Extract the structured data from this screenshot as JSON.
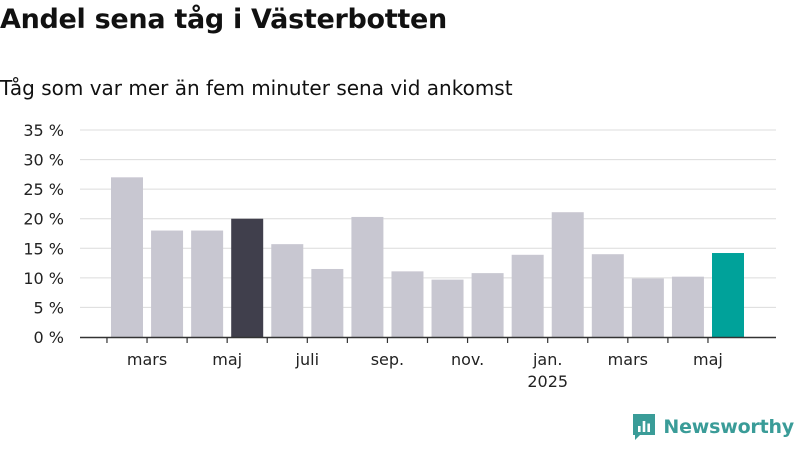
{
  "title": "Andel sena tåg i Västerbotten",
  "subtitle": "Tåg som var mer än fem minuter sena vid ankomst",
  "brand": {
    "name": "Newsworthy",
    "color": "#3a9c98",
    "icon": "newsworthy-logo-icon"
  },
  "colors": {
    "default": "#c8c7d1",
    "highlight_prev": "#403f4c",
    "highlight_last": "#00a29a",
    "grid": "#dcdcdc",
    "axis": "#333333"
  },
  "chart_data": {
    "type": "bar",
    "title": "Andel sena tåg i Västerbotten",
    "subtitle": "Tåg som var mer än fem minuter sena vid ankomst",
    "xlabel": "",
    "ylabel": "",
    "ylim": [
      0,
      35
    ],
    "y_ticks": [
      {
        "value": 0,
        "label": "0 %"
      },
      {
        "value": 5,
        "label": "5 %"
      },
      {
        "value": 10,
        "label": "10 %"
      },
      {
        "value": 15,
        "label": "15 %"
      },
      {
        "value": 20,
        "label": "20 %"
      },
      {
        "value": 25,
        "label": "25 %"
      },
      {
        "value": 30,
        "label": "30 %"
      },
      {
        "value": 35,
        "label": "35 %"
      }
    ],
    "grid": true,
    "categories": [
      "2024-02",
      "2024-03",
      "2024-04",
      "2024-05",
      "2024-06",
      "2024-07",
      "2024-08",
      "2024-09",
      "2024-10",
      "2024-11",
      "2024-12",
      "2025-01",
      "2025-02",
      "2025-03",
      "2025-04",
      "2025-05"
    ],
    "values": [
      27.0,
      18.0,
      18.0,
      20.0,
      15.7,
      11.5,
      20.3,
      11.1,
      9.7,
      10.8,
      13.9,
      21.1,
      14.0,
      9.9,
      10.2,
      14.2
    ],
    "highlight": {
      "2024-05": "highlight_prev",
      "2025-05": "highlight_last"
    },
    "x_labels": [
      {
        "category": "2024-03",
        "label": "mars",
        "sub": ""
      },
      {
        "category": "2024-05",
        "label": "maj",
        "sub": ""
      },
      {
        "category": "2024-07",
        "label": "juli",
        "sub": ""
      },
      {
        "category": "2024-09",
        "label": "sep.",
        "sub": ""
      },
      {
        "category": "2024-11",
        "label": "nov.",
        "sub": ""
      },
      {
        "category": "2025-01",
        "label": "jan.",
        "sub": "2025"
      },
      {
        "category": "2025-03",
        "label": "mars",
        "sub": ""
      },
      {
        "category": "2025-05",
        "label": "maj",
        "sub": ""
      }
    ]
  }
}
